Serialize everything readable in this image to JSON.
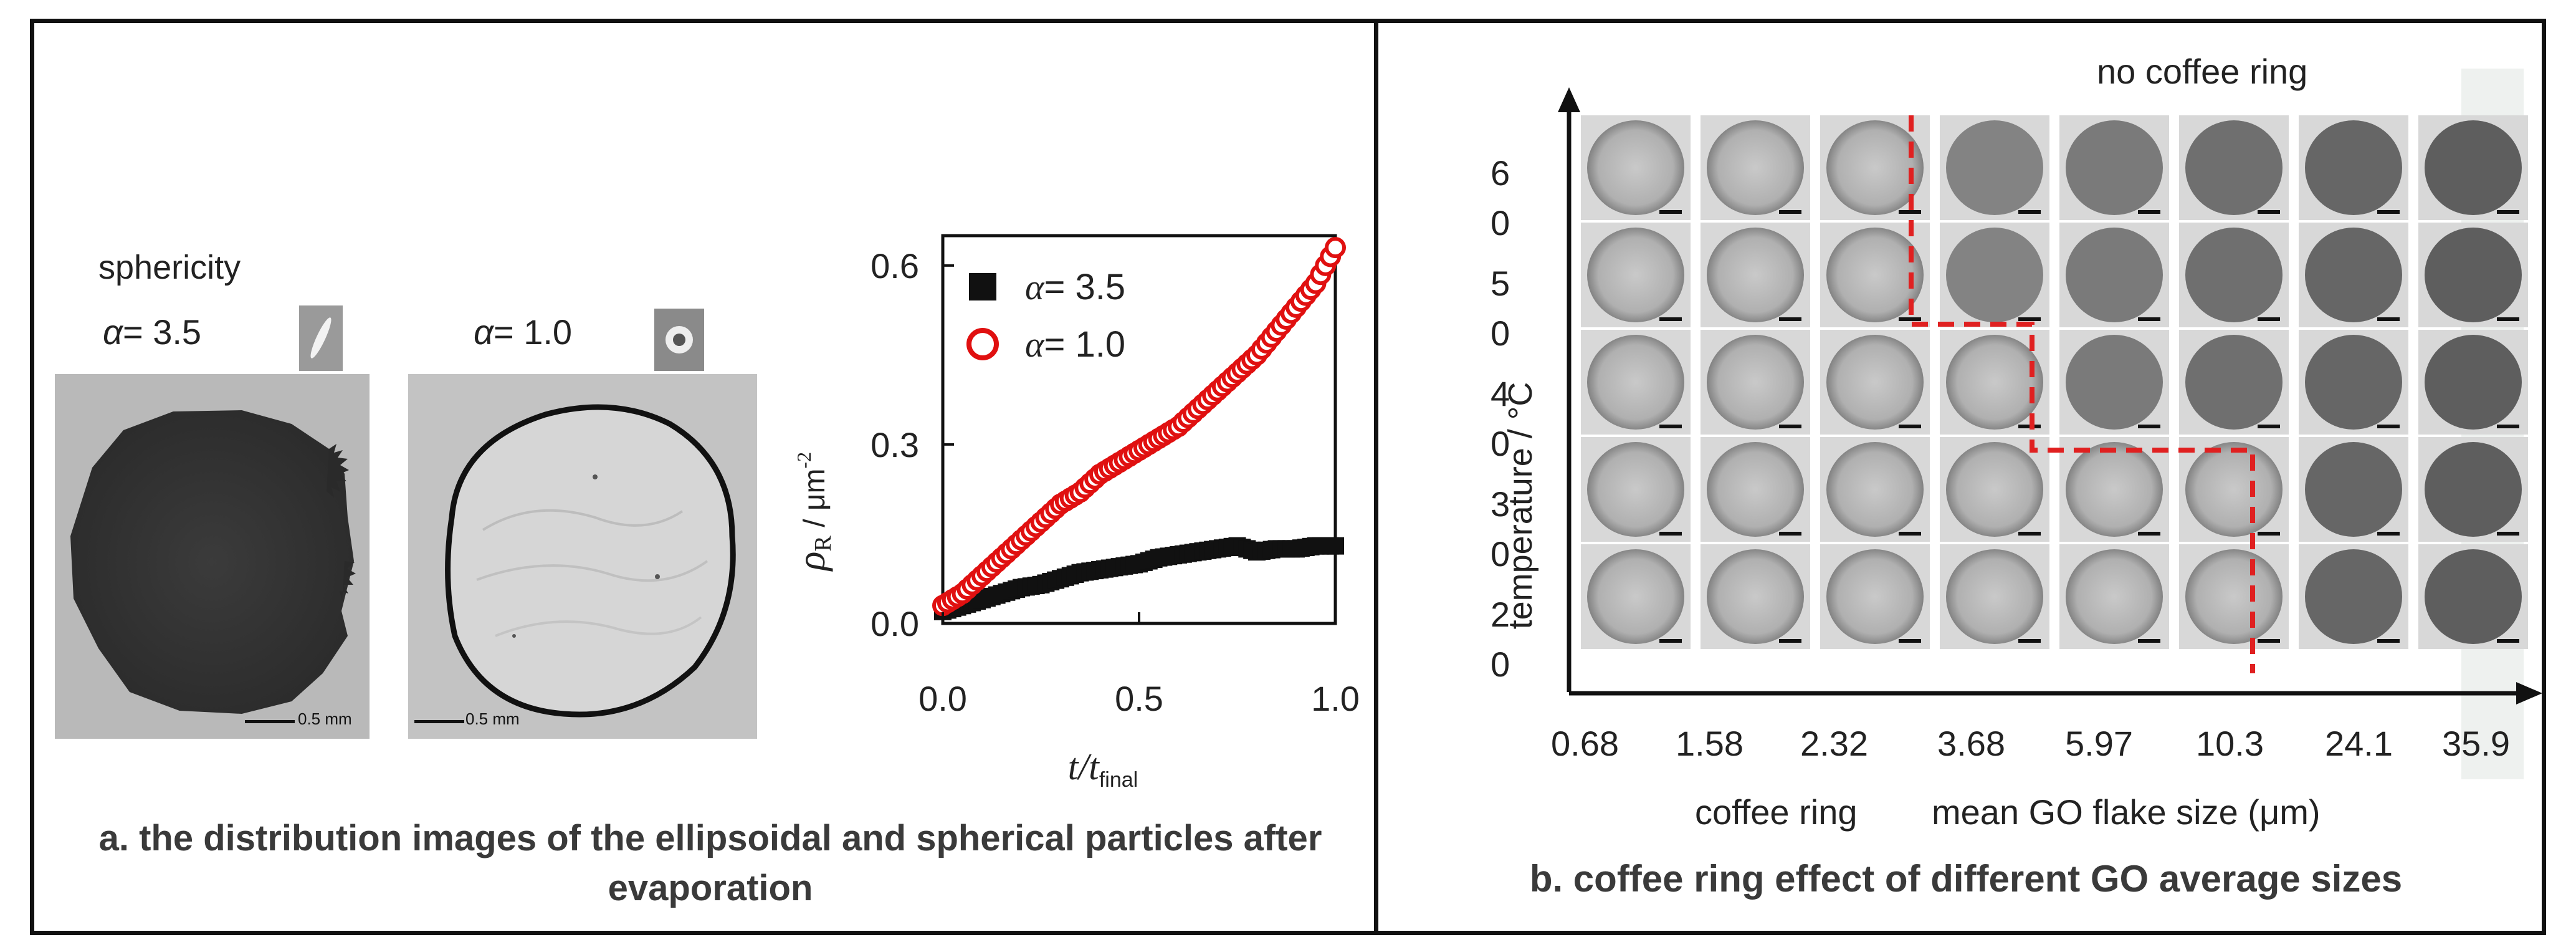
{
  "panel_a": {
    "caption_line1": "a. the distribution images of the ellipsoidal and spherical particles after",
    "caption_line2": "evaporation",
    "sphericity_label": "sphericity",
    "alpha_symbol": "α",
    "image1_alpha": "= 3.5",
    "image2_alpha": "= 1.0",
    "scale_bar_label": "0.5 mm",
    "chart_data": {
      "type": "scatter",
      "ylabel_main": "ρ",
      "ylabel_sub": "R",
      "ylabel_unit": " / μm",
      "ylabel_exp": "-2",
      "xlabel_main": "t/t",
      "xlabel_sub": "final",
      "xlim": [
        0,
        1
      ],
      "ylim": [
        0,
        0.65
      ],
      "x_ticks": [
        "0.0",
        "0.5",
        "1.0"
      ],
      "y_ticks": [
        "0.0",
        "0.3",
        "0.6"
      ],
      "x_tick_values": [
        0,
        0.5,
        1
      ],
      "y_tick_values": [
        0,
        0.3,
        0.6
      ],
      "legend_placement": "top-left",
      "series": [
        {
          "name": "= 3.5",
          "marker": "filled-square",
          "color": "#111111",
          "x": [
            0,
            0.05,
            0.1,
            0.15,
            0.2,
            0.25,
            0.3,
            0.35,
            0.4,
            0.45,
            0.5,
            0.55,
            0.6,
            0.65,
            0.7,
            0.75,
            0.8,
            0.85,
            0.9,
            0.95,
            1.0
          ],
          "y": [
            0.02,
            0.03,
            0.04,
            0.05,
            0.06,
            0.065,
            0.075,
            0.085,
            0.09,
            0.095,
            0.1,
            0.11,
            0.115,
            0.12,
            0.125,
            0.13,
            0.12,
            0.125,
            0.125,
            0.13,
            0.13
          ]
        },
        {
          "name": "= 1.0",
          "marker": "open-circle",
          "color": "#e01010",
          "x": [
            0,
            0.05,
            0.1,
            0.15,
            0.2,
            0.25,
            0.3,
            0.35,
            0.4,
            0.45,
            0.5,
            0.55,
            0.6,
            0.65,
            0.7,
            0.75,
            0.8,
            0.85,
            0.9,
            0.95,
            1.0
          ],
          "y": [
            0.03,
            0.05,
            0.08,
            0.11,
            0.14,
            0.17,
            0.2,
            0.22,
            0.25,
            0.27,
            0.29,
            0.31,
            0.33,
            0.36,
            0.39,
            0.42,
            0.45,
            0.49,
            0.53,
            0.57,
            0.63
          ]
        }
      ]
    }
  },
  "panel_b": {
    "caption": "b. coffee ring effect of different GO average sizes",
    "no_ring_label": "no coffee ring",
    "ring_label": "coffee ring",
    "x_axis_label": "mean GO flake size (μm)",
    "y_axis_label": "temperature / °C",
    "x_ticks": [
      "0.68",
      "1.58",
      "2.32",
      "3.68",
      "5.97",
      "10.3",
      "24.1",
      "35.9"
    ],
    "y_ticks": [
      {
        "d1": "6",
        "d2": "0"
      },
      {
        "d1": "5",
        "d2": "0"
      },
      {
        "d1": "4",
        "d2": "0"
      },
      {
        "d1": "3",
        "d2": "0"
      },
      {
        "d1": "2",
        "d2": "0"
      }
    ],
    "boundary_color": "#e02020",
    "ring_columns_per_row": [
      3,
      3,
      4,
      6,
      6
    ]
  }
}
